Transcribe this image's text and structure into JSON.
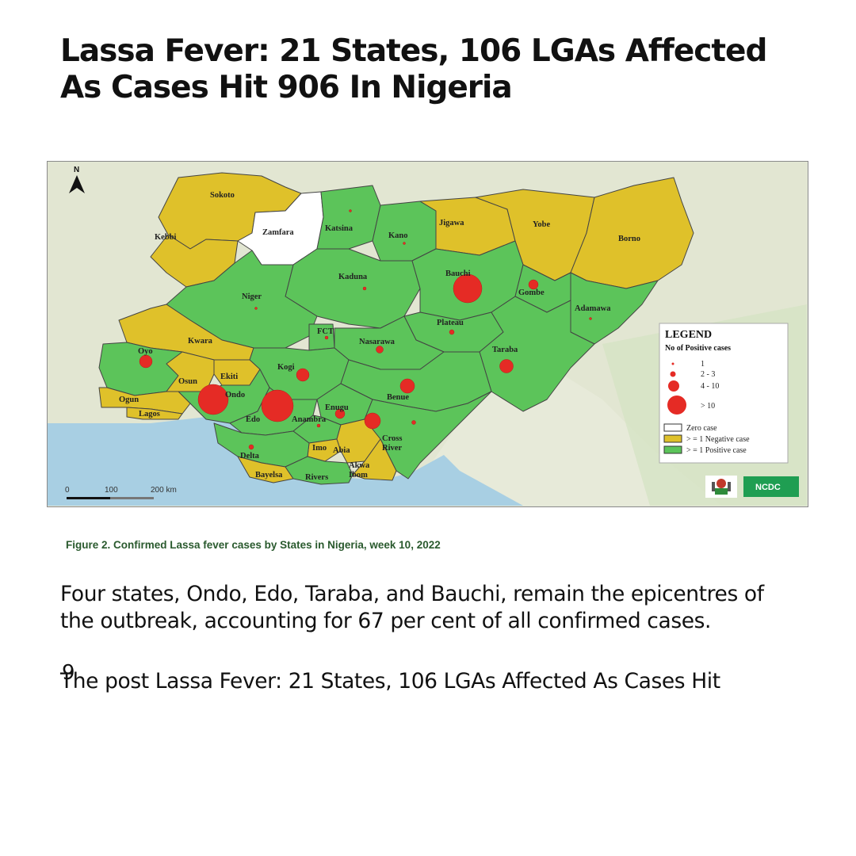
{
  "headline": "Lassa Fever: 21 States, 106 LGAs Affected As Cases Hit 906 In Nigeria",
  "colors": {
    "positive": "#5cc45a",
    "negative": "#dfc12a",
    "zero": "#ffffff",
    "cases": "#e52b25",
    "sea": "#a8cfe3",
    "caption": "#2a5a2e"
  },
  "map": {
    "north_label": "N",
    "scale_labels": [
      "0",
      "100",
      "200 km"
    ],
    "legend": {
      "title": "LEGEND",
      "subtitle": "No of Positive cases",
      "size_items": [
        "1",
        "2 - 3",
        "4 - 10",
        "> 10"
      ],
      "status_items": [
        "Zero case",
        "> = 1 Negative case",
        "> = 1 Positive case"
      ]
    },
    "logo_text": "NCDC",
    "states": [
      {
        "name": "Sokoto",
        "status": "negative"
      },
      {
        "name": "Zamfara",
        "status": "zero"
      },
      {
        "name": "Katsina",
        "status": "positive"
      },
      {
        "name": "Kano",
        "status": "positive"
      },
      {
        "name": "Jigawa",
        "status": "negative"
      },
      {
        "name": "Yobe",
        "status": "negative"
      },
      {
        "name": "Borno",
        "status": "negative"
      },
      {
        "name": "Kebbi",
        "status": "negative"
      },
      {
        "name": "Kaduna",
        "status": "positive"
      },
      {
        "name": "Bauchi",
        "status": "positive"
      },
      {
        "name": "Gombe",
        "status": "positive"
      },
      {
        "name": "Niger",
        "status": "positive"
      },
      {
        "name": "Adamawa",
        "status": "positive"
      },
      {
        "name": "FCT",
        "status": "positive"
      },
      {
        "name": "Plateau",
        "status": "positive"
      },
      {
        "name": "Nasarawa",
        "status": "positive"
      },
      {
        "name": "Taraba",
        "status": "positive"
      },
      {
        "name": "Kwara",
        "status": "negative"
      },
      {
        "name": "Oyo",
        "status": "positive"
      },
      {
        "name": "Kogi",
        "status": "positive"
      },
      {
        "name": "Ekiti",
        "status": "negative"
      },
      {
        "name": "Osun",
        "status": "negative"
      },
      {
        "name": "Ondo",
        "status": "positive"
      },
      {
        "name": "Ogun",
        "status": "negative"
      },
      {
        "name": "Lagos",
        "status": "negative"
      },
      {
        "name": "Edo",
        "status": "positive"
      },
      {
        "name": "Benue",
        "status": "positive"
      },
      {
        "name": "Enugu",
        "status": "positive"
      },
      {
        "name": "Anambra",
        "status": "positive"
      },
      {
        "name": "Cross River",
        "status": "positive"
      },
      {
        "name": "Imo",
        "status": "negative"
      },
      {
        "name": "Abia",
        "status": "negative"
      },
      {
        "name": "Delta",
        "status": "positive"
      },
      {
        "name": "Akwa Ibom",
        "status": "negative"
      },
      {
        "name": "Bayelsa",
        "status": "negative"
      },
      {
        "name": "Rivers",
        "status": "positive"
      }
    ]
  },
  "caption": "Figure 2. Confirmed Lassa fever cases by States in Nigeria, week 10, 2022",
  "body_text": "Four states, Ondo, Edo, Taraba, and Bauchi, remain the epicentres of the outbreak, accounting for 67 per cent of all confirmed cases.",
  "page_number": "9",
  "footer_text": "The post Lassa Fever: 21 States, 106 LGAs Affected As Cases Hit"
}
